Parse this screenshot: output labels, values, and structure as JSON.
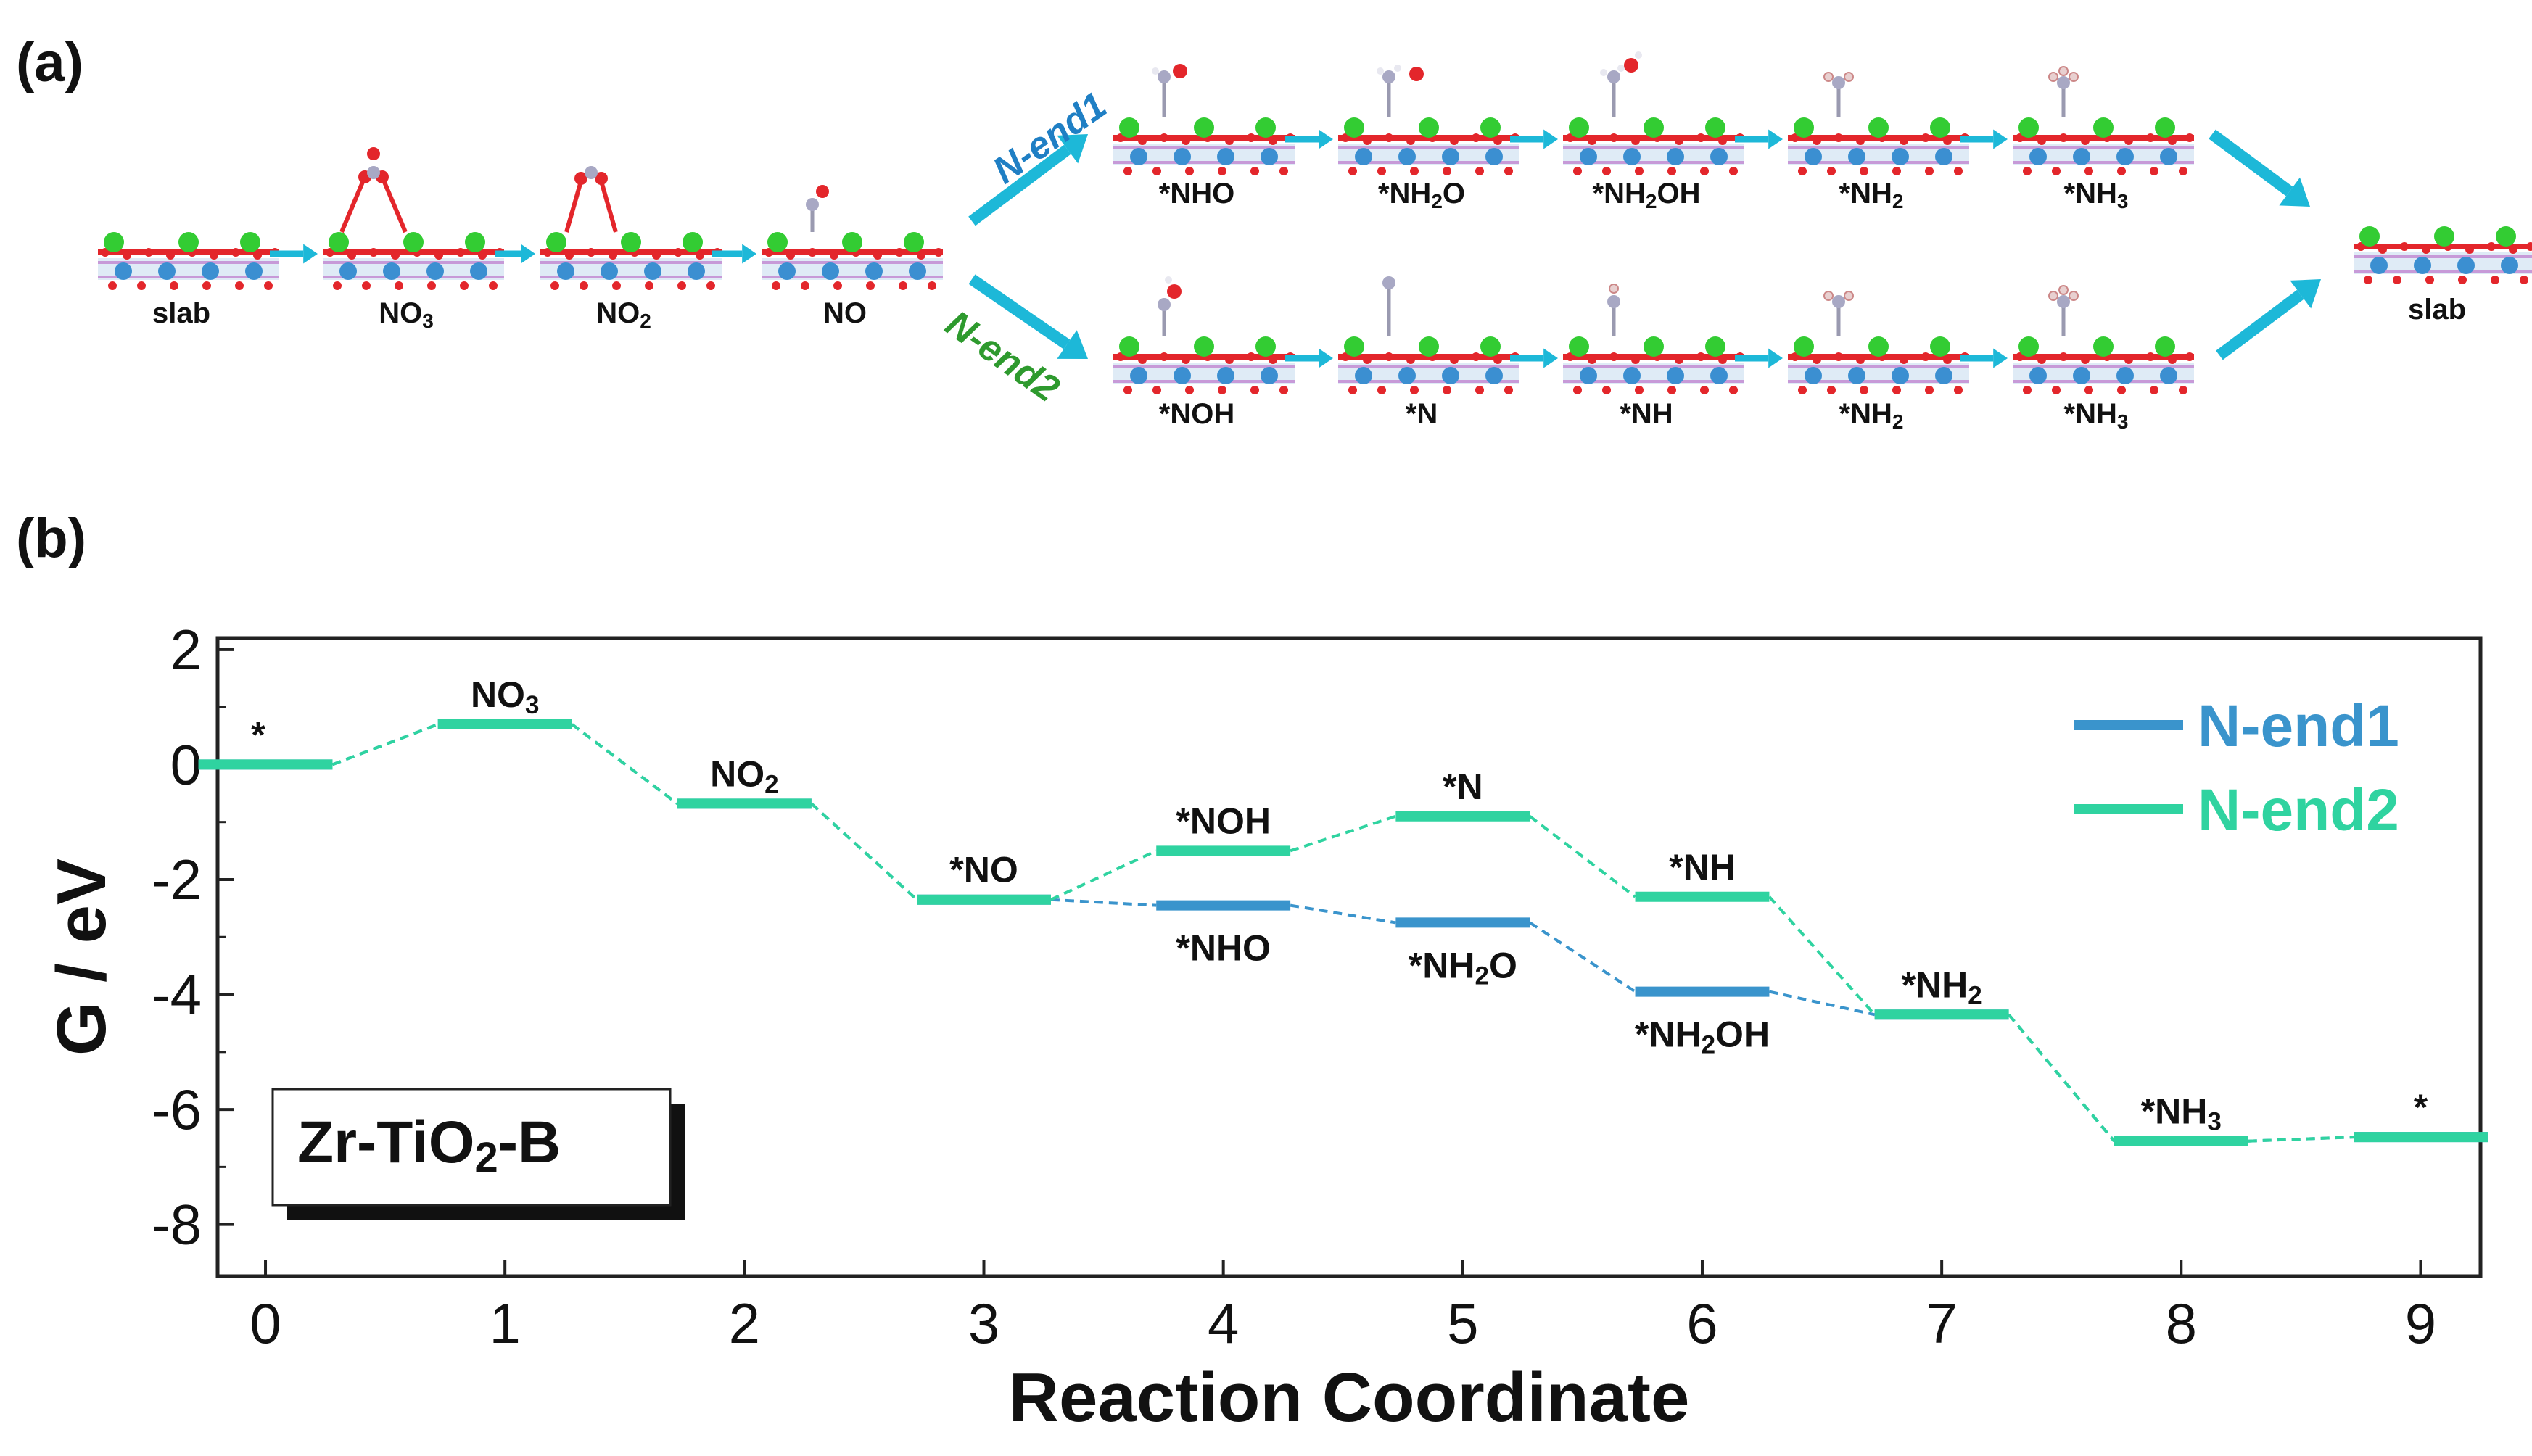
{
  "panel_a": {
    "label": "(a)",
    "common": [
      {
        "name": "slab",
        "base": "slab"
      },
      {
        "name": "NO3",
        "base": "NO",
        "sub": "3",
        "ads": "no3"
      },
      {
        "name": "NO2",
        "base": "NO",
        "sub": "2",
        "ads": "no2"
      },
      {
        "name": "NO",
        "base": "NO",
        "ads": "no"
      }
    ],
    "route1": {
      "label": "N-end1",
      "color": "#1f7fc4",
      "steps": [
        {
          "base": "*NHO",
          "ads": "nho"
        },
        {
          "base": "*NH",
          "sub": "2",
          "tail": "O",
          "ads": "nh2o"
        },
        {
          "base": "*NH",
          "sub": "2",
          "tail": "OH",
          "ads": "nh2oh"
        },
        {
          "base": "*NH",
          "sub": "2",
          "ads": "nh2"
        },
        {
          "base": "*NH",
          "sub": "3",
          "ads": "nh3"
        }
      ]
    },
    "route2": {
      "label": "N-end2",
      "color": "#2e9a2e",
      "steps": [
        {
          "base": "*NOH",
          "ads": "noh"
        },
        {
          "base": "*N",
          "ads": "n"
        },
        {
          "base": "*NH",
          "ads": "nh"
        },
        {
          "base": "*NH",
          "sub": "2",
          "ads": "nh2"
        },
        {
          "base": "*NH",
          "sub": "3",
          "ads": "nh3"
        }
      ]
    },
    "final": {
      "base": "slab"
    }
  },
  "panel_b": {
    "label": "(b)",
    "sample_box": {
      "base": "Zr-TiO",
      "sub": "2",
      "tail": "-B"
    }
  },
  "colors": {
    "n_end1": "#3a94cc",
    "n_end2": "#2fd3a0",
    "arrow": "#1db8d8",
    "slab_o": "#e3262b",
    "slab_ti": "#8fb8dd",
    "slab_zr": "#33cc33"
  },
  "chart_data": {
    "type": "line",
    "title": "",
    "xlabel": "Reaction Coordinate",
    "ylabel": "G / eV",
    "xlim": [
      -0.2,
      9.25
    ],
    "ylim": [
      -8.9,
      2.2
    ],
    "xticks": [
      0,
      1,
      2,
      3,
      4,
      5,
      6,
      7,
      8,
      9
    ],
    "yticks": [
      2,
      0,
      -2,
      -4,
      -6,
      -8
    ],
    "legend": {
      "position": "top-right",
      "entries": [
        "N-end1",
        "N-end2"
      ]
    },
    "series": [
      {
        "name": "N-end1",
        "color": "#3a94cc",
        "points": [
          {
            "x": 0,
            "y": 0.0,
            "label": "*"
          },
          {
            "x": 1,
            "y": 0.7,
            "label": "NO",
            "sub": "3"
          },
          {
            "x": 2,
            "y": -0.68,
            "label": "NO",
            "sub": "2"
          },
          {
            "x": 3,
            "y": -2.35,
            "label": "*NO"
          },
          {
            "x": 4,
            "y": -2.45,
            "label": "*NHO",
            "below": true
          },
          {
            "x": 5,
            "y": -2.75,
            "label": "*NH",
            "sub": "2",
            "tail": "O",
            "below": true
          },
          {
            "x": 6,
            "y": -3.95,
            "label": "*NH",
            "sub": "2",
            "tail": "OH",
            "below": true
          },
          {
            "x": 7,
            "y": -4.35,
            "label": "*NH",
            "sub": "2"
          },
          {
            "x": 8,
            "y": -6.55,
            "label": "*NH",
            "sub": "3"
          },
          {
            "x": 9,
            "y": -6.48,
            "label": "*"
          }
        ]
      },
      {
        "name": "N-end2",
        "color": "#2fd3a0",
        "points": [
          {
            "x": 0,
            "y": 0.0,
            "label": "*"
          },
          {
            "x": 1,
            "y": 0.7,
            "label": "NO",
            "sub": "3"
          },
          {
            "x": 2,
            "y": -0.68,
            "label": "NO",
            "sub": "2"
          },
          {
            "x": 3,
            "y": -2.35,
            "label": "*NO"
          },
          {
            "x": 4,
            "y": -1.5,
            "label": "*NOH"
          },
          {
            "x": 5,
            "y": -0.9,
            "label": "*N"
          },
          {
            "x": 6,
            "y": -2.3,
            "label": "*NH"
          },
          {
            "x": 7,
            "y": -4.35,
            "label": "*NH",
            "sub": "2"
          },
          {
            "x": 8,
            "y": -6.55,
            "label": "*NH",
            "sub": "3"
          },
          {
            "x": 9,
            "y": -6.48,
            "label": "*"
          }
        ]
      }
    ]
  }
}
